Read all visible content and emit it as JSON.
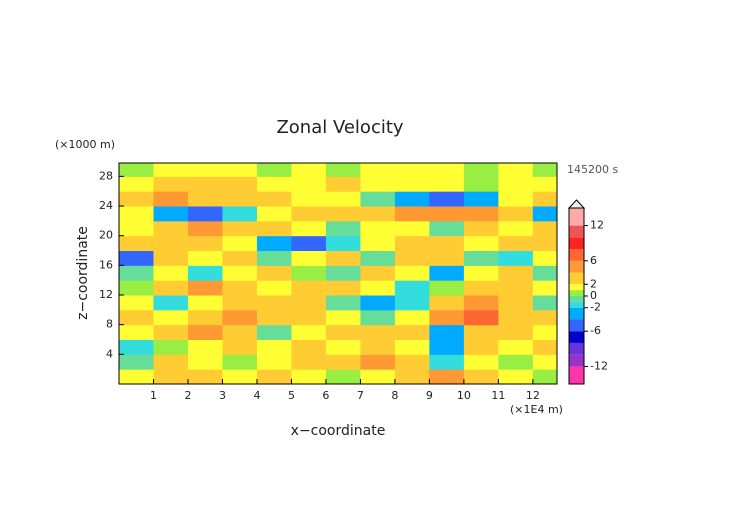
{
  "chart_data": {
    "type": "heatmap",
    "title": "Zonal Velocity",
    "x_label": "x−coordinate",
    "y_label": "z−coordinate",
    "x_unit": "(×1E4 m)",
    "y_unit": "(×1000 m)",
    "time_label": "145200 s",
    "x": [
      0.5,
      1.5,
      2.5,
      3.5,
      4.5,
      5.5,
      6.5,
      7.5,
      8.5,
      9.5,
      10.5,
      11.5,
      12.5
    ],
    "y": [
      1,
      3,
      5,
      7,
      9,
      11,
      13,
      15,
      17,
      19,
      21,
      23,
      25,
      27,
      29
    ],
    "values": [
      [
        1,
        2,
        3,
        1,
        2,
        1,
        0,
        1,
        3,
        4,
        2,
        1,
        0
      ],
      [
        -1,
        3,
        1,
        0,
        1,
        2,
        3,
        4,
        3,
        -2,
        1,
        0,
        1
      ],
      [
        -2,
        0,
        1,
        2,
        1,
        3,
        1,
        2,
        1,
        -4,
        3,
        1,
        2
      ],
      [
        1,
        2,
        4,
        3,
        -1,
        1,
        2,
        3,
        3,
        -3,
        3,
        2,
        1
      ],
      [
        2,
        1,
        3,
        4,
        2,
        3,
        1,
        -1,
        1,
        5,
        6,
        3,
        2
      ],
      [
        1,
        -2,
        1,
        2,
        3,
        2,
        -1,
        -4,
        -2,
        3,
        4,
        2,
        -1
      ],
      [
        0,
        3,
        4,
        2,
        1,
        3,
        2,
        1,
        -2,
        0,
        3,
        2,
        1
      ],
      [
        -1,
        1,
        -2,
        1,
        2,
        0,
        -1,
        2,
        1,
        -3,
        1,
        2,
        -1
      ],
      [
        -6,
        2,
        1,
        3,
        -1,
        1,
        2,
        -1,
        3,
        2,
        -1,
        -2,
        1
      ],
      [
        2,
        3,
        2,
        1,
        -3,
        -6,
        -2,
        1,
        2,
        3,
        1,
        3,
        2
      ],
      [
        1,
        3,
        4,
        2,
        2,
        1,
        -1,
        1,
        1,
        -1,
        2,
        1,
        3
      ],
      [
        1,
        -4,
        -6,
        -2,
        1,
        2,
        3,
        3,
        4,
        5,
        4,
        2,
        -4
      ],
      [
        2,
        4,
        3,
        3,
        2,
        1,
        1,
        -1,
        -4,
        -5,
        -3,
        1,
        3
      ],
      [
        1,
        2,
        3,
        2,
        1,
        1,
        2,
        1,
        1,
        1,
        0,
        1,
        1
      ],
      [
        0,
        1,
        1,
        1,
        0,
        1,
        0,
        1,
        1,
        1,
        0,
        1,
        0
      ]
    ],
    "xlim": [
      0,
      12.7
    ],
    "ylim": [
      0,
      29.8
    ],
    "xticks": [
      1,
      2,
      3,
      4,
      5,
      6,
      7,
      8,
      9,
      10,
      11,
      12
    ],
    "yticks": [
      4,
      8,
      12,
      16,
      20,
      24,
      28
    ],
    "levels": [
      -15,
      -12,
      -10,
      -8,
      -6,
      -4,
      -2,
      -1,
      0,
      1,
      2,
      4,
      6,
      8,
      10,
      12,
      15
    ],
    "colors": [
      "#ff33aa",
      "#9933cc",
      "#6633dd",
      "#0000cc",
      "#3366ff",
      "#00aaff",
      "#33dddd",
      "#66dd99",
      "#99ee44",
      "#ffff33",
      "#ffcc33",
      "#ff9933",
      "#ff6633",
      "#ff2222",
      "#ee5555",
      "#ffaaaa"
    ],
    "clim": [
      -15,
      15
    ],
    "cticks": [
      -12,
      -6,
      -2,
      0,
      2,
      6,
      12
    ]
  }
}
